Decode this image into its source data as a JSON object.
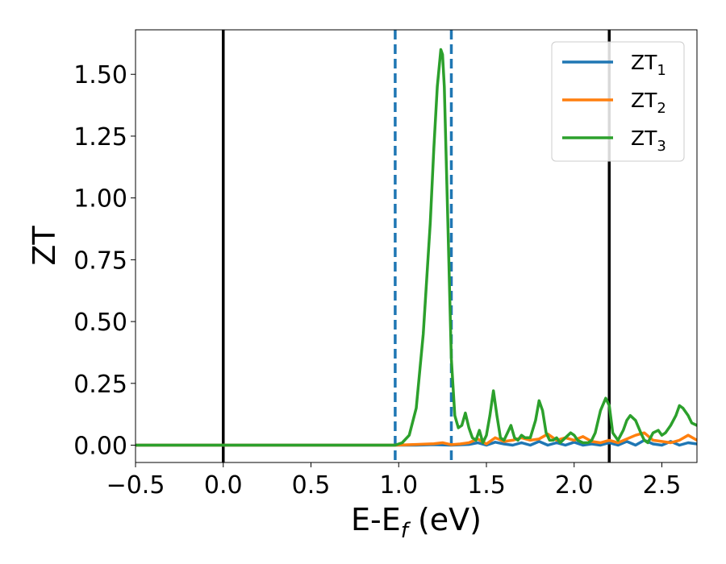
{
  "chart_data": {
    "type": "line",
    "xlabel_main": "E-E",
    "xlabel_sub": "f",
    "xlabel_unit": " (eV)",
    "ylabel": "ZT",
    "xlim": [
      -0.5,
      2.7
    ],
    "ylim": [
      -0.07,
      1.68
    ],
    "x_ticks": [
      -0.5,
      0.0,
      0.5,
      1.0,
      1.5,
      2.0,
      2.5
    ],
    "x_tick_labels": [
      "−0.5",
      "0.0",
      "0.5",
      "1.0",
      "1.5",
      "2.0",
      "2.5"
    ],
    "y_ticks": [
      0.0,
      0.25,
      0.5,
      0.75,
      1.0,
      1.25,
      1.5
    ],
    "y_tick_labels": [
      "0.00",
      "0.25",
      "0.50",
      "0.75",
      "1.00",
      "1.25",
      "1.50"
    ],
    "grid": false,
    "legend_position": "top-right",
    "vertical_lines": [
      {
        "x": 0.0,
        "style": "solid",
        "color": "#000000"
      },
      {
        "x": 2.2,
        "style": "solid",
        "color": "#000000"
      },
      {
        "x": 0.98,
        "style": "dashed",
        "color": "#1f77b4"
      },
      {
        "x": 1.3,
        "style": "dashed",
        "color": "#1f77b4"
      }
    ],
    "series": [
      {
        "name_main": "ZT",
        "name_sub": "1",
        "color": "#1f77b4",
        "x": [
          -0.5,
          0.0,
          0.5,
          0.98,
          1.1,
          1.2,
          1.3,
          1.4,
          1.45,
          1.5,
          1.55,
          1.6,
          1.65,
          1.7,
          1.75,
          1.8,
          1.85,
          1.9,
          1.95,
          2.0,
          2.05,
          2.1,
          2.15,
          2.2,
          2.25,
          2.3,
          2.35,
          2.4,
          2.45,
          2.5,
          2.55,
          2.6,
          2.65,
          2.7
        ],
        "y": [
          0,
          0,
          0,
          0,
          0.0,
          0.002,
          0.0,
          0.003,
          0.01,
          0.0,
          0.012,
          0.005,
          0.0,
          0.01,
          0.0,
          0.015,
          0.0,
          0.01,
          0.0,
          0.012,
          0.0,
          0.005,
          0.0,
          0.01,
          0.0,
          0.015,
          0.0,
          0.02,
          0.005,
          0.0,
          0.015,
          0.0,
          0.01,
          0.005
        ]
      },
      {
        "name_main": "ZT",
        "name_sub": "2",
        "color": "#ff7f0e",
        "x": [
          -0.5,
          0.0,
          0.5,
          0.98,
          1.1,
          1.2,
          1.25,
          1.3,
          1.35,
          1.4,
          1.45,
          1.5,
          1.55,
          1.6,
          1.65,
          1.7,
          1.75,
          1.8,
          1.85,
          1.9,
          1.95,
          2.0,
          2.05,
          2.1,
          2.15,
          2.2,
          2.25,
          2.3,
          2.35,
          2.4,
          2.45,
          2.5,
          2.55,
          2.6,
          2.65,
          2.7
        ],
        "y": [
          0,
          0,
          0,
          0,
          0.003,
          0.006,
          0.01,
          0.002,
          0.005,
          0.01,
          0.025,
          0.005,
          0.03,
          0.015,
          0.02,
          0.03,
          0.02,
          0.025,
          0.045,
          0.02,
          0.03,
          0.02,
          0.035,
          0.015,
          0.01,
          0.02,
          0.01,
          0.025,
          0.04,
          0.05,
          0.02,
          0.015,
          0.01,
          0.02,
          0.04,
          0.02
        ]
      },
      {
        "name_main": "ZT",
        "name_sub": "3",
        "color": "#2ca02c",
        "x": [
          -0.5,
          0.0,
          0.5,
          0.98,
          1.02,
          1.06,
          1.1,
          1.14,
          1.18,
          1.2,
          1.22,
          1.24,
          1.25,
          1.26,
          1.28,
          1.3,
          1.32,
          1.34,
          1.36,
          1.38,
          1.4,
          1.42,
          1.44,
          1.46,
          1.48,
          1.5,
          1.52,
          1.54,
          1.56,
          1.58,
          1.6,
          1.62,
          1.64,
          1.66,
          1.68,
          1.7,
          1.72,
          1.75,
          1.78,
          1.8,
          1.82,
          1.84,
          1.86,
          1.88,
          1.9,
          1.92,
          1.95,
          1.98,
          2.0,
          2.02,
          2.05,
          2.08,
          2.1,
          2.12,
          2.15,
          2.18,
          2.2,
          2.22,
          2.25,
          2.28,
          2.3,
          2.32,
          2.35,
          2.38,
          2.4,
          2.42,
          2.45,
          2.48,
          2.5,
          2.52,
          2.55,
          2.58,
          2.6,
          2.62,
          2.65,
          2.67,
          2.7
        ],
        "y": [
          0,
          0,
          0,
          0,
          0.01,
          0.04,
          0.15,
          0.45,
          0.9,
          1.2,
          1.45,
          1.6,
          1.58,
          1.45,
          0.9,
          0.35,
          0.12,
          0.07,
          0.08,
          0.13,
          0.07,
          0.03,
          0.02,
          0.06,
          0.01,
          0.04,
          0.12,
          0.22,
          0.12,
          0.03,
          0.02,
          0.05,
          0.08,
          0.03,
          0.02,
          0.04,
          0.03,
          0.03,
          0.1,
          0.18,
          0.14,
          0.05,
          0.02,
          0.02,
          0.03,
          0.01,
          0.03,
          0.05,
          0.04,
          0.02,
          0.01,
          0.01,
          0.02,
          0.05,
          0.14,
          0.19,
          0.16,
          0.05,
          0.02,
          0.06,
          0.1,
          0.12,
          0.1,
          0.05,
          0.02,
          0.01,
          0.05,
          0.06,
          0.04,
          0.05,
          0.08,
          0.12,
          0.16,
          0.15,
          0.12,
          0.09,
          0.08
        ]
      }
    ]
  }
}
